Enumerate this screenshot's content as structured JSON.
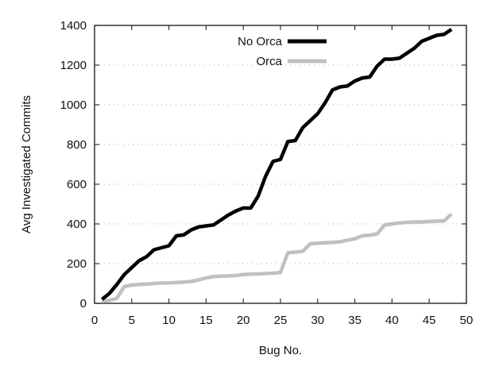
{
  "chart_data": {
    "type": "line",
    "title": "",
    "xlabel": "Bug No.",
    "ylabel": "Avg Investigated Commits",
    "xlim": [
      0,
      50
    ],
    "ylim": [
      0,
      1400
    ],
    "xticks": [
      0,
      5,
      10,
      15,
      20,
      25,
      30,
      35,
      40,
      45,
      50
    ],
    "yticks": [
      0,
      200,
      400,
      600,
      800,
      1000,
      1200,
      1400
    ],
    "grid": "horizontal dotted",
    "legend_position": "top-center",
    "x": [
      1,
      2,
      3,
      4,
      5,
      6,
      7,
      8,
      9,
      10,
      11,
      12,
      13,
      14,
      15,
      16,
      17,
      18,
      19,
      20,
      21,
      22,
      23,
      24,
      25,
      26,
      27,
      28,
      29,
      30,
      31,
      32,
      33,
      34,
      35,
      36,
      37,
      38,
      39,
      40,
      41,
      42,
      43,
      44,
      45,
      46,
      47,
      48
    ],
    "series": [
      {
        "name": "No Orca",
        "color": "#000000",
        "values": [
          20,
          50,
          95,
          145,
          180,
          215,
          235,
          270,
          280,
          290,
          340,
          345,
          370,
          385,
          390,
          395,
          420,
          445,
          465,
          480,
          480,
          540,
          640,
          715,
          725,
          815,
          820,
          885,
          920,
          955,
          1010,
          1075,
          1090,
          1095,
          1120,
          1135,
          1140,
          1195,
          1230,
          1230,
          1235,
          1260,
          1285,
          1320,
          1335,
          1350,
          1355,
          1380
        ]
      },
      {
        "name": "Orca",
        "color": "#c0c0c0",
        "values": [
          10,
          15,
          25,
          85,
          92,
          95,
          97,
          100,
          102,
          103,
          105,
          107,
          110,
          118,
          128,
          135,
          137,
          138,
          140,
          145,
          147,
          148,
          150,
          152,
          155,
          255,
          258,
          262,
          300,
          303,
          305,
          307,
          310,
          318,
          325,
          340,
          343,
          350,
          395,
          400,
          405,
          408,
          410,
          410,
          412,
          414,
          415,
          450
        ]
      }
    ]
  }
}
